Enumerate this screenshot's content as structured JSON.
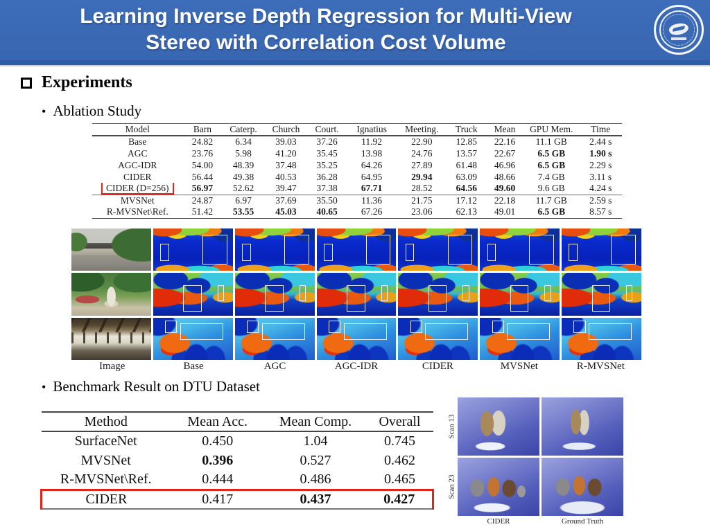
{
  "header": {
    "title_line1": "Learning Inverse Depth Regression for Multi-View",
    "title_line2": "Stereo with Correlation Cost Volume",
    "logo_icon": "university-seal-icon"
  },
  "sections": {
    "experiments": "Experiments",
    "ablation": "Ablation Study",
    "benchmark": "Benchmark Result on DTU Dataset"
  },
  "colors": {
    "header_blue": "#3966b0",
    "header_strip_blue": "#2e5da8",
    "accent_red": "#e0241a",
    "depth_colormap": "jet"
  },
  "ablation_table": {
    "columns": [
      "Model",
      "Barn",
      "Caterp.",
      "Church",
      "Court.",
      "Ignatius",
      "Meeting.",
      "Truck",
      "Mean",
      "GPU Mem.",
      "Time"
    ],
    "rows": [
      {
        "cells": [
          "Base",
          "24.82",
          "6.34",
          "39.03",
          "37.26",
          "11.92",
          "22.90",
          "12.85",
          "22.16",
          "11.1 GB",
          "2.44 s"
        ],
        "bold": []
      },
      {
        "cells": [
          "AGC",
          "23.76",
          "5.98",
          "41.20",
          "35.45",
          "13.98",
          "24.76",
          "13.57",
          "22.67",
          "6.5 GB",
          "1.90 s"
        ],
        "bold": [
          9,
          10
        ]
      },
      {
        "cells": [
          "AGC-IDR",
          "54.00",
          "48.39",
          "37.48",
          "35.25",
          "64.26",
          "27.89",
          "61.48",
          "46.96",
          "6.5 GB",
          "2.29 s"
        ],
        "bold": [
          9
        ]
      },
      {
        "cells": [
          "CIDER",
          "56.44",
          "49.38",
          "40.53",
          "36.28",
          "64.95",
          "29.94",
          "63.09",
          "48.66",
          "7.4 GB",
          "3.11 s"
        ],
        "bold": [
          6
        ]
      },
      {
        "cells": [
          "CIDER (D=256)",
          "56.97",
          "52.62",
          "39.47",
          "37.38",
          "67.71",
          "28.52",
          "64.56",
          "49.60",
          "9.6 GB",
          "4.24 s"
        ],
        "bold": [
          1,
          5,
          7,
          8
        ],
        "boxed_model": true,
        "red_underline": [
          8
        ],
        "separator_after": true
      },
      {
        "cells": [
          "MVSNet",
          "24.87",
          "6.97",
          "37.69",
          "35.50",
          "11.36",
          "21.75",
          "17.12",
          "22.18",
          "11.7 GB",
          "2.59 s"
        ],
        "bold": []
      },
      {
        "cells": [
          "R-MVSNet\\Ref.",
          "51.42",
          "53.55",
          "45.03",
          "40.65",
          "67.26",
          "23.06",
          "62.13",
          "49.01",
          "6.5 GB",
          "8.57 s"
        ],
        "bold": [
          2,
          3,
          4,
          9
        ]
      }
    ]
  },
  "image_grid": {
    "column_labels": [
      "Image",
      "Base",
      "AGC",
      "AGC-IDR",
      "CIDER",
      "MVSNet",
      "R-MVSNet"
    ],
    "row_scenes": [
      "barn-outdoor-photo",
      "garden-statue-photo",
      "lounge-interior-photo"
    ],
    "annotation": "white outline boxes highlight comparison regions on jet-colormap depth maps"
  },
  "dtu_table": {
    "columns": [
      "Method",
      "Mean Acc.",
      "Mean Comp.",
      "Overall"
    ],
    "rows": [
      {
        "cells": [
          "SurfaceNet",
          "0.450",
          "1.04",
          "0.745"
        ],
        "bold": []
      },
      {
        "cells": [
          "MVSNet",
          "0.396",
          "0.527",
          "0.462"
        ],
        "bold": [
          1
        ]
      },
      {
        "cells": [
          "R-MVSNet\\Ref.",
          "0.444",
          "0.486",
          "0.465"
        ],
        "bold": []
      },
      {
        "cells": [
          "CIDER",
          "0.417",
          "0.437",
          "0.427"
        ],
        "bold": [
          2,
          3
        ],
        "boxed_row": true
      }
    ]
  },
  "scan_figure": {
    "row_labels": [
      "Scan 13",
      "Scan 23"
    ],
    "column_labels": [
      "CIDER",
      "Ground Truth"
    ]
  }
}
